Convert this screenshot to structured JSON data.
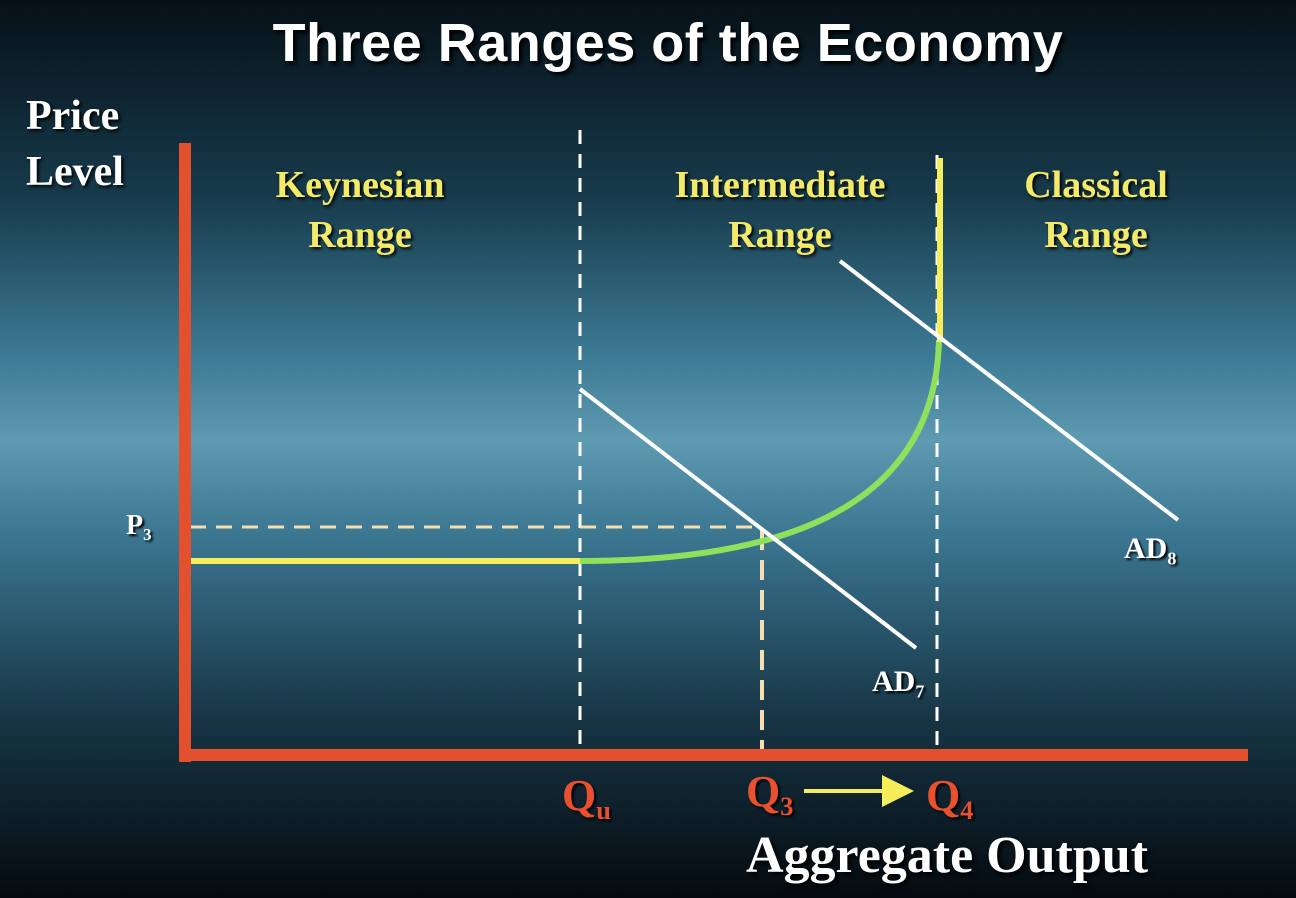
{
  "title": "Three Ranges of the Economy",
  "y_axis_label": [
    "Price",
    "Level"
  ],
  "x_axis_label": "Aggregate Output",
  "ranges": [
    {
      "line1": "Keynesian",
      "line2": "Range"
    },
    {
      "line1": "Intermediate",
      "line2": "Range"
    },
    {
      "line1": "Classical",
      "line2": "Range"
    }
  ],
  "price_tick": {
    "main": "P",
    "sub": "3"
  },
  "quantity_ticks": [
    {
      "main": "Q",
      "sub": "u"
    },
    {
      "main": "Q",
      "sub": "3"
    },
    {
      "main": "Q",
      "sub": "4"
    }
  ],
  "demand_curves": [
    {
      "main": "AD",
      "sub": "7"
    },
    {
      "main": "AD",
      "sub": "8"
    }
  ],
  "colors": {
    "axis": "#e2502e",
    "supply_flat": "#f5ee5a",
    "supply_curve": "#8fe05c",
    "supply_vertical": "#f5ee5a",
    "demand": "#ffffff",
    "guides": "#ffffff",
    "projection": "#f5dfb0",
    "shift_arrow": "#f5ee5a",
    "range_text": "#f4ea6a",
    "quantity_text": "#e8502f"
  }
}
